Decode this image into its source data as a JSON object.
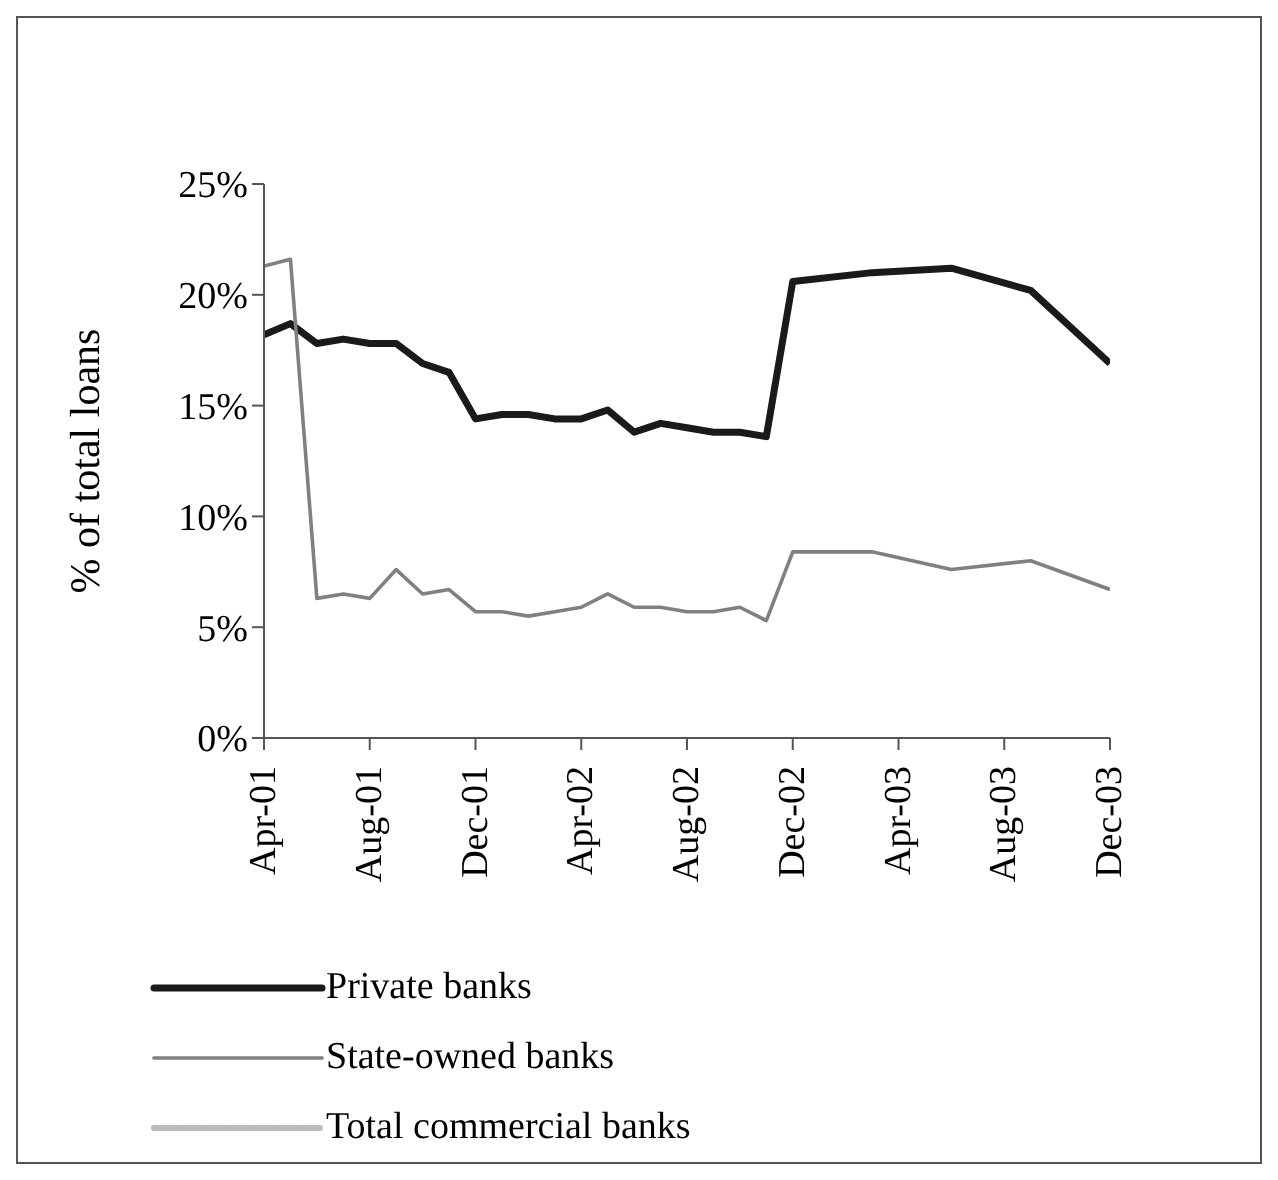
{
  "chart_data": {
    "type": "line",
    "ylabel": "% of total loans",
    "x": [
      "2001-04",
      "2001-05",
      "2001-06",
      "2001-07",
      "2001-08",
      "2001-09",
      "2001-10",
      "2001-11",
      "2001-12",
      "2002-01",
      "2002-02",
      "2002-03",
      "2002-04",
      "2002-05",
      "2002-06",
      "2002-07",
      "2002-08",
      "2002-09",
      "2002-10",
      "2002-11",
      "2002-12",
      "2003-03",
      "2003-06",
      "2003-09",
      "2003-12"
    ],
    "series": [
      {
        "name": "Private banks",
        "color": "#1a1a1a",
        "values": [
          18.2,
          18.7,
          17.8,
          18.0,
          17.8,
          17.8,
          16.9,
          16.5,
          14.4,
          14.6,
          14.6,
          14.4,
          14.4,
          14.8,
          13.8,
          14.2,
          14.0,
          13.8,
          13.8,
          13.6,
          20.6,
          21.0,
          21.2,
          20.2,
          16.9
        ]
      },
      {
        "name": "State-owned banks",
        "color": "#808080",
        "values": [
          21.3,
          21.6,
          6.3,
          6.5,
          6.3,
          7.6,
          6.5,
          6.7,
          5.7,
          5.7,
          5.5,
          5.7,
          5.9,
          6.5,
          5.9,
          5.9,
          5.7,
          5.7,
          5.9,
          5.3,
          8.4,
          8.4,
          7.6,
          8.0,
          6.7
        ]
      },
      {
        "name": "Total commercial banks",
        "color": "#bbbbbb",
        "values": [
          null,
          null,
          null,
          null,
          null,
          null,
          null,
          null,
          null,
          null,
          null,
          null,
          null,
          null,
          null,
          null,
          null,
          null,
          null,
          null,
          null,
          null,
          null,
          null,
          null
        ]
      }
    ],
    "xlim": [
      "2001-04",
      "2003-12"
    ],
    "xticks": [
      {
        "value": "2001-04",
        "label": "Apr-01"
      },
      {
        "value": "2001-08",
        "label": "Aug-01"
      },
      {
        "value": "2001-12",
        "label": "Dec-01"
      },
      {
        "value": "2002-04",
        "label": "Apr-02"
      },
      {
        "value": "2002-08",
        "label": "Aug-02"
      },
      {
        "value": "2002-12",
        "label": "Dec-02"
      },
      {
        "value": "2003-04",
        "label": "Apr-03"
      },
      {
        "value": "2003-08",
        "label": "Aug-03"
      },
      {
        "value": "2003-12",
        "label": "Dec-03"
      }
    ],
    "ylim": [
      0,
      25
    ],
    "yticks": [
      {
        "value": 0,
        "label": "0%"
      },
      {
        "value": 5,
        "label": "5%"
      },
      {
        "value": 10,
        "label": "10%"
      },
      {
        "value": 15,
        "label": "15%"
      },
      {
        "value": 20,
        "label": "20%"
      },
      {
        "value": 25,
        "label": "25%"
      }
    ],
    "grid": false,
    "legend": "bottom",
    "marker": "none",
    "line_style": "solid"
  }
}
